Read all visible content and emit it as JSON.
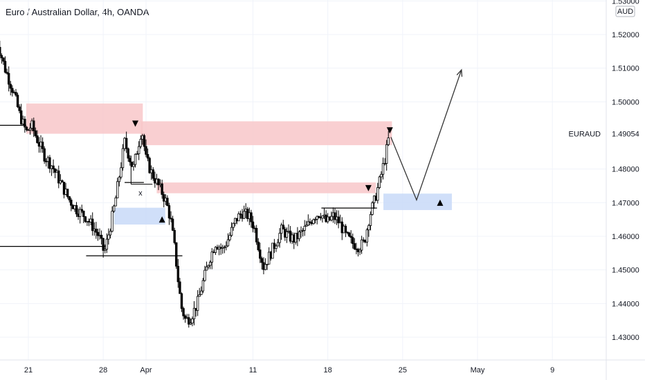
{
  "header": {
    "title": "Euro / Australian Dollar, 4h, OANDA"
  },
  "colors": {
    "up": "#ffffff",
    "down": "#000000",
    "wick": "#000000",
    "supply_zone": "#f8c7c9",
    "demand_zone": "#c8d9f8",
    "grid": "#f0f3fa",
    "axis_line": "#e0e3eb"
  },
  "chart_data": {
    "type": "candlestick",
    "symbol_label": "EURAUD",
    "last_price_label": "1.49054",
    "currency_label": "AUD",
    "ylim": [
      1.4235,
      1.5335
    ],
    "y_ticks": [
      {
        "value": 1.53,
        "label": "1.53000"
      },
      {
        "value": 1.52,
        "label": "1.52000"
      },
      {
        "value": 1.51,
        "label": "1.51000"
      },
      {
        "value": 1.5,
        "label": "1.50000"
      },
      {
        "value": 1.48,
        "label": "1.48000"
      },
      {
        "value": 1.47,
        "label": "1.47000"
      },
      {
        "value": 1.46,
        "label": "1.46000"
      },
      {
        "value": 1.45,
        "label": "1.45000"
      },
      {
        "value": 1.44,
        "label": "1.44000"
      },
      {
        "value": 1.43,
        "label": "1.43000"
      }
    ],
    "x_ticks": [
      {
        "label": "21",
        "day": 21
      },
      {
        "label": "28",
        "day": 28
      },
      {
        "label": "Apr",
        "day": 32
      },
      {
        "label": "11",
        "day": 42
      },
      {
        "label": "18",
        "day": 49
      },
      {
        "label": "25",
        "day": 56
      },
      {
        "label": "May",
        "day": 63
      },
      {
        "label": "9",
        "day": 70
      }
    ],
    "x_domain_days": [
      18,
      74
    ],
    "price_path": [
      [
        18.0,
        1.519
      ],
      [
        18.8,
        1.51
      ],
      [
        19.6,
        1.503
      ],
      [
        20.2,
        1.496
      ],
      [
        20.8,
        1.491
      ],
      [
        21.3,
        1.493
      ],
      [
        21.8,
        1.489
      ],
      [
        22.5,
        1.484
      ],
      [
        23.2,
        1.481
      ],
      [
        24.0,
        1.476
      ],
      [
        24.8,
        1.471
      ],
      [
        25.5,
        1.468
      ],
      [
        26.3,
        1.466
      ],
      [
        27.0,
        1.463
      ],
      [
        27.6,
        1.46
      ],
      [
        28.1,
        1.455
      ],
      [
        28.6,
        1.462
      ],
      [
        29.1,
        1.47
      ],
      [
        29.6,
        1.48
      ],
      [
        30.0,
        1.488
      ],
      [
        30.4,
        1.484
      ],
      [
        30.8,
        1.48
      ],
      [
        31.2,
        1.486
      ],
      [
        31.6,
        1.492
      ],
      [
        32.0,
        1.483
      ],
      [
        32.5,
        1.479
      ],
      [
        33.0,
        1.476
      ],
      [
        33.5,
        1.473
      ],
      [
        33.9,
        1.47
      ],
      [
        34.3,
        1.465
      ],
      [
        34.7,
        1.456
      ],
      [
        35.0,
        1.447
      ],
      [
        35.3,
        1.439
      ],
      [
        35.7,
        1.435
      ],
      [
        36.2,
        1.436
      ],
      [
        36.8,
        1.44
      ],
      [
        37.3,
        1.446
      ],
      [
        37.9,
        1.453
      ],
      [
        38.5,
        1.458
      ],
      [
        39.2,
        1.456
      ],
      [
        39.8,
        1.46
      ],
      [
        40.4,
        1.465
      ],
      [
        41.0,
        1.467
      ],
      [
        41.6,
        1.466
      ],
      [
        42.1,
        1.463
      ],
      [
        42.6,
        1.456
      ],
      [
        43.0,
        1.451
      ],
      [
        43.5,
        1.454
      ],
      [
        44.1,
        1.458
      ],
      [
        44.7,
        1.462
      ],
      [
        45.3,
        1.46
      ],
      [
        45.9,
        1.459
      ],
      [
        46.5,
        1.461
      ],
      [
        47.1,
        1.463
      ],
      [
        47.7,
        1.466
      ],
      [
        48.3,
        1.467
      ],
      [
        48.9,
        1.464
      ],
      [
        49.5,
        1.466
      ],
      [
        50.1,
        1.464
      ],
      [
        50.7,
        1.46
      ],
      [
        51.3,
        1.458
      ],
      [
        51.9,
        1.457
      ],
      [
        52.4,
        1.458
      ],
      [
        52.9,
        1.466
      ],
      [
        53.4,
        1.471
      ],
      [
        53.9,
        1.477
      ],
      [
        54.4,
        1.484
      ],
      [
        54.8,
        1.491
      ]
    ],
    "zones": [
      {
        "type": "supply",
        "x0": 20.8,
        "x1": 31.7,
        "y0": 1.4905,
        "y1": 1.4995
      },
      {
        "type": "supply",
        "x0": 31.5,
        "x1": 55.0,
        "y0": 1.4871,
        "y1": 1.4942
      },
      {
        "type": "supply",
        "x0": 33.0,
        "x1": 53.5,
        "y0": 1.4728,
        "y1": 1.476
      },
      {
        "type": "demand",
        "x0": 29.0,
        "x1": 33.8,
        "y0": 1.4635,
        "y1": 1.4685
      },
      {
        "type": "demand",
        "x0": 54.2,
        "x1": 60.6,
        "y0": 1.4678,
        "y1": 1.4727
      }
    ],
    "levels": [
      {
        "x0": 18.0,
        "x1": 20.8,
        "y": 1.493
      },
      {
        "x0": 18.0,
        "x1": 28.2,
        "y": 1.457
      },
      {
        "x0": 26.4,
        "x1": 35.4,
        "y": 1.4542
      },
      {
        "x0": 48.4,
        "x1": 53.6,
        "y": 1.4684
      },
      {
        "x0": 30.0,
        "x1": 31.8,
        "y": 1.476
      }
    ],
    "markers": [
      {
        "shape": "triangle-down",
        "x": 31.0,
        "y": 1.4935
      },
      {
        "shape": "triangle-down",
        "x": 52.8,
        "y": 1.4743
      },
      {
        "shape": "triangle-down",
        "x": 54.8,
        "y": 1.4915
      },
      {
        "shape": "triangle-up",
        "x": 33.5,
        "y": 1.465
      },
      {
        "shape": "triangle-up",
        "x": 59.5,
        "y": 1.47
      }
    ],
    "x_annotation": {
      "text": "x",
      "x": 31.3,
      "y": 1.4729
    },
    "projection": [
      [
        54.9,
        1.4895
      ],
      [
        57.3,
        1.4708
      ],
      [
        61.5,
        1.5095
      ]
    ]
  }
}
